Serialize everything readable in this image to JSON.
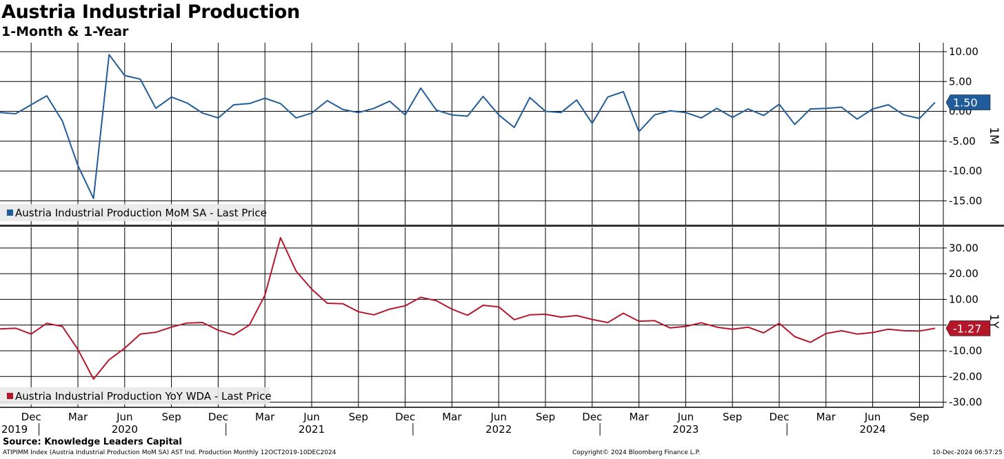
{
  "header": {
    "title": "Austria Industrial Production",
    "subtitle": "1-Month & 1-Year"
  },
  "footer": {
    "source": "Source:  Knowledge Leaders Capital",
    "meta": "ATIPIMM Index (Austria Industrial Production MoM SA) AST Ind. Production  Monthly 12OCT2019-10DEC2024",
    "copyright": "Copyright© 2024 Bloomberg Finance L.P.",
    "timestamp": "10-Dec-2024 06:57:25"
  },
  "chart_data": [
    {
      "type": "line",
      "panel_label": "1M",
      "legend": "Austria Industrial Production MoM SA - Last Price",
      "color": "#1f5c99",
      "ylim": [
        -19,
        11.5
      ],
      "yticks": [
        10,
        5,
        0,
        -5,
        -10,
        -15
      ],
      "ytick_labels": [
        "10.00",
        "5.00",
        "0.00",
        "-5.00",
        "-10.00",
        "-15.00"
      ],
      "last_value": 1.5,
      "last_value_label": "1.50",
      "x": [
        "2019-10",
        "2019-11",
        "2019-12",
        "2020-01",
        "2020-02",
        "2020-03",
        "2020-04",
        "2020-05",
        "2020-06",
        "2020-07",
        "2020-08",
        "2020-09",
        "2020-10",
        "2020-11",
        "2020-12",
        "2021-01",
        "2021-02",
        "2021-03",
        "2021-04",
        "2021-05",
        "2021-06",
        "2021-07",
        "2021-08",
        "2021-09",
        "2021-10",
        "2021-11",
        "2021-12",
        "2022-01",
        "2022-02",
        "2022-03",
        "2022-04",
        "2022-05",
        "2022-06",
        "2022-07",
        "2022-08",
        "2022-09",
        "2022-10",
        "2022-11",
        "2022-12",
        "2023-01",
        "2023-02",
        "2023-03",
        "2023-04",
        "2023-05",
        "2023-06",
        "2023-07",
        "2023-08",
        "2023-09",
        "2023-10",
        "2023-11",
        "2023-12",
        "2024-01",
        "2024-02",
        "2024-03",
        "2024-04",
        "2024-05",
        "2024-06",
        "2024-07",
        "2024-08",
        "2024-09",
        "2024-10"
      ],
      "values": [
        -0.2,
        -0.4,
        1.1,
        2.6,
        -1.6,
        -9.1,
        -14.6,
        9.5,
        6.0,
        5.4,
        0.5,
        2.4,
        1.4,
        -0.3,
        -1.1,
        1.1,
        1.3,
        2.2,
        1.3,
        -1.1,
        -0.3,
        1.8,
        0.3,
        -0.2,
        0.5,
        1.7,
        -0.6,
        3.9,
        0.2,
        -0.6,
        -0.8,
        2.5,
        -0.6,
        -2.7,
        2.3,
        0.0,
        -0.2,
        1.9,
        -2.0,
        2.4,
        3.3,
        -3.4,
        -0.6,
        0.1,
        -0.2,
        -1.1,
        0.5,
        -1.0,
        0.4,
        -0.7,
        1.2,
        -2.2,
        0.4,
        0.5,
        0.7,
        -1.3,
        0.4,
        1.1,
        -0.6,
        -1.2,
        1.5
      ]
    },
    {
      "type": "line",
      "panel_label": "1Y",
      "legend": "Austria Industrial Production YoY WDA - Last Price",
      "color": "#b5172a",
      "ylim": [
        -32,
        38
      ],
      "yticks": [
        30,
        20,
        10,
        0,
        -10,
        -20,
        -30
      ],
      "ytick_labels": [
        "30.00",
        "20.00",
        "10.00",
        "",
        "-10.00",
        "-20.00",
        "-30.00"
      ],
      "last_value": -1.27,
      "last_value_label": "-1.27",
      "x": [
        "2019-10",
        "2019-11",
        "2019-12",
        "2020-01",
        "2020-02",
        "2020-03",
        "2020-04",
        "2020-05",
        "2020-06",
        "2020-07",
        "2020-08",
        "2020-09",
        "2020-10",
        "2020-11",
        "2020-12",
        "2021-01",
        "2021-02",
        "2021-03",
        "2021-04",
        "2021-05",
        "2021-06",
        "2021-07",
        "2021-08",
        "2021-09",
        "2021-10",
        "2021-11",
        "2021-12",
        "2022-01",
        "2022-02",
        "2022-03",
        "2022-04",
        "2022-05",
        "2022-06",
        "2022-07",
        "2022-08",
        "2022-09",
        "2022-10",
        "2022-11",
        "2022-12",
        "2023-01",
        "2023-02",
        "2023-03",
        "2023-04",
        "2023-05",
        "2023-06",
        "2023-07",
        "2023-08",
        "2023-09",
        "2023-10",
        "2023-11",
        "2023-12",
        "2024-01",
        "2024-02",
        "2024-03",
        "2024-04",
        "2024-05",
        "2024-06",
        "2024-07",
        "2024-08",
        "2024-09",
        "2024-10"
      ],
      "values": [
        -1.5,
        -1.2,
        -3.5,
        0.7,
        -0.5,
        -9.5,
        -21.0,
        -13.5,
        -9.0,
        -3.5,
        -2.8,
        -0.8,
        0.8,
        1.0,
        -2.0,
        -3.8,
        0.0,
        11.6,
        34.0,
        21.0,
        14.0,
        8.5,
        8.3,
        5.2,
        4.0,
        6.2,
        7.5,
        10.8,
        9.5,
        6.2,
        3.8,
        7.7,
        7.1,
        2.1,
        4.0,
        4.2,
        3.1,
        3.7,
        2.2,
        1.0,
        4.6,
        1.5,
        1.7,
        -1.1,
        -0.5,
        0.9,
        -0.8,
        -1.6,
        -0.8,
        -3.0,
        0.7,
        -4.5,
        -6.7,
        -3.3,
        -2.2,
        -3.5,
        -2.9,
        -1.6,
        -2.2,
        -2.3,
        -1.27
      ]
    }
  ],
  "x_axis": {
    "month_labels": [
      {
        "date": "2019-12",
        "label": "Dec"
      },
      {
        "date": "2020-03",
        "label": "Mar"
      },
      {
        "date": "2020-06",
        "label": "Jun"
      },
      {
        "date": "2020-09",
        "label": "Sep"
      },
      {
        "date": "2020-12",
        "label": "Dec"
      },
      {
        "date": "2021-03",
        "label": "Mar"
      },
      {
        "date": "2021-06",
        "label": "Jun"
      },
      {
        "date": "2021-09",
        "label": "Sep"
      },
      {
        "date": "2021-12",
        "label": "Dec"
      },
      {
        "date": "2022-03",
        "label": "Mar"
      },
      {
        "date": "2022-06",
        "label": "Jun"
      },
      {
        "date": "2022-09",
        "label": "Sep"
      },
      {
        "date": "2022-12",
        "label": "Dec"
      },
      {
        "date": "2023-03",
        "label": "Mar"
      },
      {
        "date": "2023-06",
        "label": "Jun"
      },
      {
        "date": "2023-09",
        "label": "Sep"
      },
      {
        "date": "2023-12",
        "label": "Dec"
      },
      {
        "date": "2024-03",
        "label": "Mar"
      },
      {
        "date": "2024-06",
        "label": "Jun"
      },
      {
        "date": "2024-09",
        "label": "Sep"
      }
    ],
    "year_labels": [
      {
        "date": "2019-10",
        "label": "2019"
      },
      {
        "date": "2020-06",
        "label": "2020"
      },
      {
        "date": "2021-06",
        "label": "2021"
      },
      {
        "date": "2022-06",
        "label": "2022"
      },
      {
        "date": "2023-06",
        "label": "2023"
      },
      {
        "date": "2024-06",
        "label": "2024"
      }
    ]
  }
}
